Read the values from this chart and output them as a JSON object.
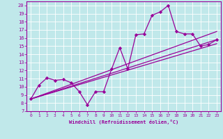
{
  "xlabel": "Windchill (Refroidissement éolien,°C)",
  "bg_color": "#c0e8ea",
  "line_color": "#990099",
  "grid_color": "#ffffff",
  "xlim": [
    -0.5,
    23.5
  ],
  "ylim": [
    7,
    20.5
  ],
  "xticks": [
    0,
    1,
    2,
    3,
    4,
    5,
    6,
    7,
    8,
    9,
    10,
    11,
    12,
    13,
    14,
    15,
    16,
    17,
    18,
    19,
    20,
    21,
    22,
    23
  ],
  "yticks": [
    7,
    8,
    9,
    10,
    11,
    12,
    13,
    14,
    15,
    16,
    17,
    18,
    19,
    20
  ],
  "series1_x": [
    0,
    1,
    2,
    3,
    4,
    5,
    6,
    7,
    8,
    9,
    10,
    11,
    12,
    13,
    14,
    15,
    16,
    17,
    18,
    19,
    20,
    21,
    22,
    23
  ],
  "series1_y": [
    8.5,
    10.2,
    11.1,
    10.8,
    10.9,
    10.5,
    9.4,
    7.8,
    9.4,
    9.4,
    12.2,
    14.8,
    12.2,
    16.4,
    16.5,
    18.8,
    19.2,
    20.0,
    16.8,
    16.5,
    16.5,
    15.0,
    15.2,
    15.8
  ],
  "line2_x0": 0,
  "line2_y0": 8.5,
  "line2_x1": 23,
  "line2_y1": 16.8,
  "line3_x0": 0,
  "line3_y0": 8.5,
  "line3_x1": 23,
  "line3_y1": 15.8,
  "line4_x0": 0,
  "line4_y0": 8.5,
  "line4_x1": 23,
  "line4_y1": 15.3
}
